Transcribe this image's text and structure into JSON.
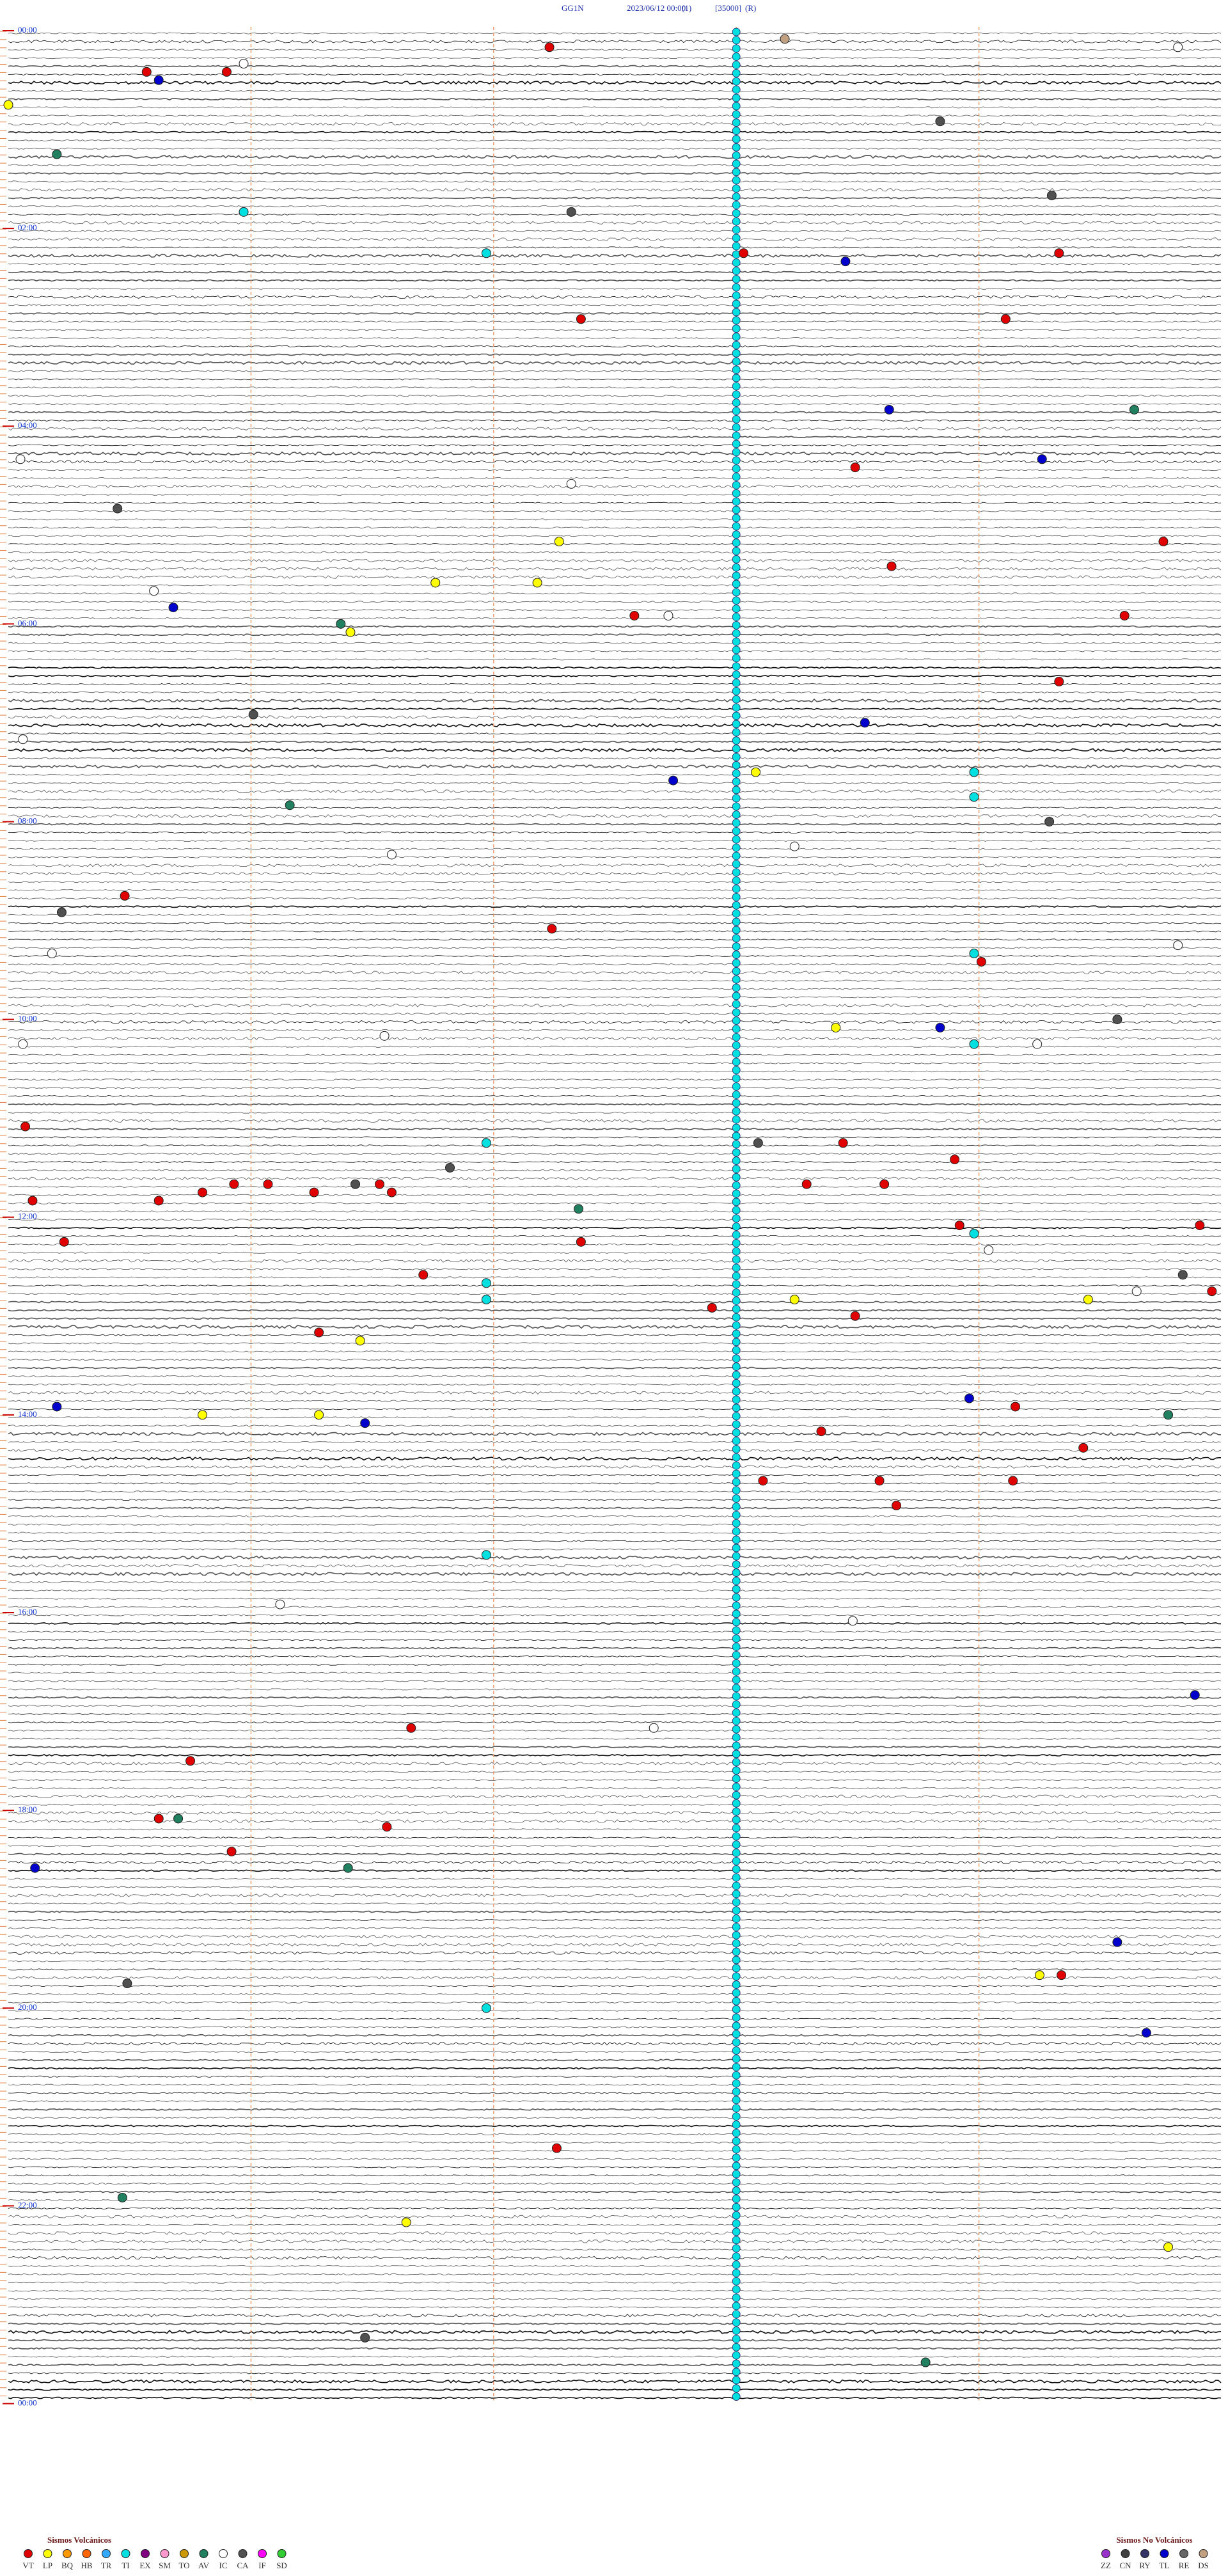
{
  "header": {
    "station": "GG1N",
    "date": "2023/06/12 00:00",
    "channel": "(1)",
    "scale": "[35000]",
    "mode": "(R)"
  },
  "chart_data": {
    "type": "helicorder",
    "minutes_per_line": 5,
    "line_count": 288,
    "time_labels": [
      "00:00",
      "02:00",
      "04:00",
      "06:00",
      "08:00",
      "10:00",
      "12:00",
      "14:00",
      "16:00",
      "18:00",
      "20:00",
      "22:00",
      "00:00"
    ],
    "legend_volcanic": {
      "title": "Sismos Volcánicos",
      "items": [
        {
          "code": "VT",
          "color": "#e00000"
        },
        {
          "code": "LP",
          "color": "#ffff00"
        },
        {
          "code": "BQ",
          "color": "#ff9900"
        },
        {
          "code": "HB",
          "color": "#ff6600"
        },
        {
          "code": "TR",
          "color": "#33aaff"
        },
        {
          "code": "TI",
          "color": "#00e0e0"
        },
        {
          "code": "EX",
          "color": "#800080"
        },
        {
          "code": "SM",
          "color": "#ff99cc"
        },
        {
          "code": "TO",
          "color": "#cc9900"
        },
        {
          "code": "AV",
          "color": "#208060"
        },
        {
          "code": "IC",
          "color": "#ffffff"
        },
        {
          "code": "CA",
          "color": "#505050"
        },
        {
          "code": "IF",
          "color": "#ff00ff"
        },
        {
          "code": "SD",
          "color": "#33cc33"
        }
      ]
    },
    "legend_nonvolcanic": {
      "title": "Sismos No Volcánicos",
      "items": [
        {
          "code": "ZZ",
          "color": "#9933cc"
        },
        {
          "code": "CN",
          "color": "#404040"
        },
        {
          "code": "RY",
          "color": "#333366"
        },
        {
          "code": "TL",
          "color": "#0000cc"
        },
        {
          "code": "RE",
          "color": "#666666"
        },
        {
          "code": "DS",
          "color": "#c0a080"
        }
      ]
    },
    "events": [
      {
        "t": 8.2,
        "class": "DS"
      },
      {
        "t": 12.23,
        "class": "VT"
      },
      {
        "t": 25.57,
        "class": "VT"
      },
      {
        "t": 25.9,
        "class": "VT"
      },
      {
        "t": 30.62,
        "class": "TL"
      },
      {
        "t": 20.97,
        "class": "IC"
      },
      {
        "t": 14.82,
        "class": "IC"
      },
      {
        "t": 45.0,
        "class": "LP"
      },
      {
        "t": 58.84,
        "class": "CA"
      },
      {
        "t": 75.2,
        "class": "AV"
      },
      {
        "t": 104.3,
        "class": "CA"
      },
      {
        "t": 112.32,
        "class": "CA"
      },
      {
        "t": 110.97,
        "class": "TI"
      },
      {
        "t": 136.97,
        "class": "TI"
      },
      {
        "t": 138.03,
        "class": "VT"
      },
      {
        "t": 143.45,
        "class": "TL"
      },
      {
        "t": 139.33,
        "class": "VT"
      },
      {
        "t": 177.36,
        "class": "VT"
      },
      {
        "t": 179.11,
        "class": "VT"
      },
      {
        "t": 233.63,
        "class": "TL"
      },
      {
        "t": 234.64,
        "class": "AV"
      },
      {
        "t": 264.26,
        "class": "TL"
      },
      {
        "t": 268.49,
        "class": "VT"
      },
      {
        "t": 290.45,
        "class": "CA"
      },
      {
        "t": 314.76,
        "class": "VT"
      },
      {
        "t": 312.27,
        "class": "LP"
      },
      {
        "t": 328.64,
        "class": "VT"
      },
      {
        "t": 336.76,
        "class": "LP"
      },
      {
        "t": 337.18,
        "class": "LP"
      },
      {
        "t": 350.68,
        "class": "TL"
      },
      {
        "t": 357.58,
        "class": "VT"
      },
      {
        "t": 359.6,
        "class": "VT"
      },
      {
        "t": 361.37,
        "class": "AV"
      },
      {
        "t": 366.41,
        "class": "LP"
      },
      {
        "t": 399.33,
        "class": "VT"
      },
      {
        "t": 416.01,
        "class": "CA"
      },
      {
        "t": 423.53,
        "class": "TL"
      },
      {
        "t": 457.74,
        "class": "TL"
      },
      {
        "t": 453.08,
        "class": "LP"
      },
      {
        "t": 471.16,
        "class": "AV"
      },
      {
        "t": 484.29,
        "class": "CA"
      },
      {
        "t": 525.48,
        "class": "VT"
      },
      {
        "t": 535.22,
        "class": "CA"
      },
      {
        "t": 547.24,
        "class": "VT"
      },
      {
        "t": 569.01,
        "class": "VT"
      },
      {
        "t": 608.41,
        "class": "LP"
      },
      {
        "t": 608.84,
        "class": "TL"
      },
      {
        "t": 604.57,
        "class": "CA"
      },
      {
        "t": 665.07,
        "class": "VT"
      },
      {
        "t": 676.97,
        "class": "TI"
      },
      {
        "t": 678.09,
        "class": "CA"
      },
      {
        "t": 678.44,
        "class": "VT"
      },
      {
        "t": 691.82,
        "class": "CA"
      },
      {
        "t": 688.9,
        "class": "VT"
      },
      {
        "t": 700.93,
        "class": "VT"
      },
      {
        "t": 701.07,
        "class": "VT"
      },
      {
        "t": 701.43,
        "class": "CA"
      },
      {
        "t": 701.53,
        "class": "VT"
      },
      {
        "t": 705.8,
        "class": "VT"
      },
      {
        "t": 706.26,
        "class": "VT"
      },
      {
        "t": 706.58,
        "class": "VT"
      },
      {
        "t": 710.62,
        "class": "VT"
      },
      {
        "t": 710.1,
        "class": "VT"
      },
      {
        "t": 703.29,
        "class": "VT"
      },
      {
        "t": 703.61,
        "class": "VT"
      },
      {
        "t": 717.35,
        "class": "AV"
      },
      {
        "t": 729.91,
        "class": "VT"
      },
      {
        "t": 728.92,
        "class": "VT"
      },
      {
        "t": 735.23,
        "class": "VT"
      },
      {
        "t": 737.36,
        "class": "VT"
      },
      {
        "t": 756.71,
        "class": "VT"
      },
      {
        "t": 759.84,
        "class": "CA"
      },
      {
        "t": 769.96,
        "class": "VT"
      },
      {
        "t": 773.24,
        "class": "LP"
      },
      {
        "t": 783.49,
        "class": "VT"
      },
      {
        "t": 777.9,
        "class": "VT"
      },
      {
        "t": 774.45,
        "class": "LP"
      },
      {
        "t": 791.28,
        "class": "VT"
      },
      {
        "t": 796.45,
        "class": "LP"
      },
      {
        "t": 833.96,
        "class": "TL"
      },
      {
        "t": 839.15,
        "class": "VT"
      },
      {
        "t": 835.2,
        "class": "TL"
      },
      {
        "t": 840.8,
        "class": "LP"
      },
      {
        "t": 841.28,
        "class": "LP"
      },
      {
        "t": 846.47,
        "class": "TL"
      },
      {
        "t": 844.78,
        "class": "AV"
      },
      {
        "t": 853.35,
        "class": "VT"
      },
      {
        "t": 864.43,
        "class": "VT"
      },
      {
        "t": 883.11,
        "class": "VT"
      },
      {
        "t": 883.59,
        "class": "VT"
      },
      {
        "t": 884.14,
        "class": "VT"
      },
      {
        "t": 898.66,
        "class": "VT"
      },
      {
        "t": 1031.66,
        "class": "VT"
      },
      {
        "t": 1050.75,
        "class": "VT"
      },
      {
        "t": 1085.62,
        "class": "VT"
      },
      {
        "t": 1085.7,
        "class": "AV"
      },
      {
        "t": 1091.56,
        "class": "VT"
      },
      {
        "t": 1115.11,
        "class": "TL"
      },
      {
        "t": 1105.92,
        "class": "VT"
      },
      {
        "t": 1116.4,
        "class": "AV"
      },
      {
        "t": 1014.89,
        "class": "TL"
      },
      {
        "t": 1164.57,
        "class": "TL"
      },
      {
        "t": 1184.34,
        "class": "VT"
      },
      {
        "t": 1184.25,
        "class": "LP"
      },
      {
        "t": 1219.69,
        "class": "TL"
      },
      {
        "t": 1185.49,
        "class": "CA"
      },
      {
        "t": 1287.26,
        "class": "VT"
      },
      {
        "t": 1315.47,
        "class": "AV"
      },
      {
        "t": 1331.64,
        "class": "LP"
      },
      {
        "t": 1349.78,
        "class": "LP"
      },
      {
        "t": 1401.47,
        "class": "CA"
      },
      {
        "t": 1418.78,
        "class": "AV"
      },
      {
        "t": 260.05,
        "class": "IC"
      },
      {
        "t": 277.32,
        "class": "IC"
      },
      {
        "t": 340.6,
        "class": "IC"
      },
      {
        "t": 357.72,
        "class": "IC"
      },
      {
        "t": 430.06,
        "class": "IC"
      },
      {
        "t": 498.24,
        "class": "IC"
      },
      {
        "t": 501.58,
        "class": "IC"
      },
      {
        "t": 619.24,
        "class": "IC"
      },
      {
        "t": 611.55,
        "class": "IC"
      },
      {
        "t": 615.06,
        "class": "IC"
      },
      {
        "t": 956.12,
        "class": "IC"
      },
      {
        "t": 968.48,
        "class": "IC"
      },
      {
        "t": 1032.66,
        "class": "IC"
      },
      {
        "t": 769.65,
        "class": "IC"
      },
      {
        "t": 744.04,
        "class": "IC"
      },
      {
        "t": 559.82,
        "class": "IC"
      },
      {
        "t": 560.18,
        "class": "IC"
      },
      {
        "t": 453.98,
        "class": "TI"
      },
      {
        "t": 468.98,
        "class": "TI"
      },
      {
        "t": 563.98,
        "class": "TI"
      },
      {
        "t": 618.98,
        "class": "TI"
      },
      {
        "t": 733.98,
        "class": "TI"
      },
      {
        "t": 761.97,
        "class": "TI"
      },
      {
        "t": 771.97,
        "class": "TI"
      },
      {
        "t": 926.97,
        "class": "TI"
      },
      {
        "t": 1201.97,
        "class": "TI"
      }
    ]
  }
}
